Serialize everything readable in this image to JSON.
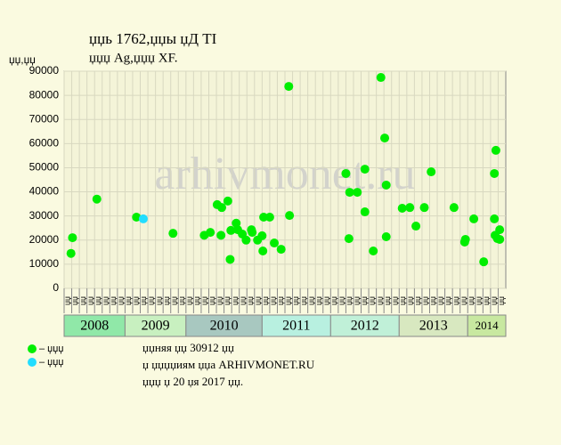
{
  "chart_data": {
    "type": "scatter",
    "title": "џџь 1762,џџы џД TI",
    "subtitle": "џџџ Ag,џџџ XF.",
    "y_label": "џџ,џџ",
    "watermark": "arhivmonet.ru",
    "xlim": [
      0,
      58
    ],
    "ylim": [
      0,
      90000
    ],
    "yticks": [
      0,
      10000,
      20000,
      30000,
      40000,
      50000,
      60000,
      70000,
      80000,
      90000
    ],
    "grid": true,
    "column_labels": [
      "џџ",
      "џџ",
      "џџ",
      "џџ",
      "џџ",
      "џџ",
      "џџ",
      "џџ",
      "џџ",
      "џџ",
      "џџ",
      "џџ",
      "џџ",
      "џџ",
      "џџ",
      "џџ",
      "џџ",
      "џџ",
      "џџ",
      "џџ",
      "џџ",
      "џџ",
      "џџ",
      "џџ",
      "џџ",
      "џџ",
      "џџ",
      "џџ",
      "џџ",
      "џџ",
      "џџ",
      "џџ",
      "џџ",
      "џџ",
      "џџ",
      "џџ",
      "џџ",
      "џџ",
      "џџ",
      "џџ",
      "џџ",
      "џџ",
      "џџ",
      "џџ",
      "џџ",
      "џџ",
      "џџ",
      "џџ",
      "џџ",
      "џџ",
      "џџ",
      "џџ",
      "џџ",
      "џџ",
      "џџ",
      "џџ",
      "џџ",
      "џџ"
    ],
    "years": [
      {
        "label": "2008",
        "start": 0,
        "end": 8,
        "color": "#90e8a8"
      },
      {
        "label": "2009",
        "start": 8,
        "end": 16,
        "color": "#c8f0c0"
      },
      {
        "label": "2010",
        "start": 16,
        "end": 26,
        "color": "#a8c8c0"
      },
      {
        "label": "2011",
        "start": 26,
        "end": 35,
        "color": "#b8f0e0"
      },
      {
        "label": "2012",
        "start": 35,
        "end": 44,
        "color": "#c0f0d8"
      },
      {
        "label": "2013",
        "start": 44,
        "end": 53,
        "color": "#d8e8c0"
      },
      {
        "label": "2014",
        "start": 53,
        "end": 58,
        "color": "#c8e8a0"
      }
    ],
    "series": [
      {
        "name": "– џџџ",
        "color": "#00ee00",
        "x": [
          0.9,
          1.1,
          4.3,
          9.5,
          14.3,
          18.4,
          19.2,
          20.1,
          20.7,
          20.6,
          21.5,
          21.8,
          21.9,
          22.6,
          22.8,
          23.4,
          23.9,
          24.6,
          24.7,
          25.4,
          26.0,
          26.1,
          26.2,
          27.0,
          27.6,
          28.5,
          29.5,
          29.6,
          37.0,
          37.4,
          37.5,
          38.5,
          39.5,
          39.5,
          40.6,
          41.6,
          42.1,
          42.3,
          42.3,
          44.4,
          45.4,
          46.2,
          47.3,
          48.2,
          51.2,
          52.6,
          52.7,
          53.8,
          55.1,
          56.5,
          56.5,
          56.7,
          56.6,
          56.9,
          57.2,
          57.2
        ],
        "values": [
          14500,
          21000,
          37000,
          29500,
          22800,
          22000,
          23200,
          34700,
          33500,
          22000,
          36200,
          12000,
          24000,
          27000,
          24300,
          22500,
          20000,
          24300,
          23200,
          20000,
          21800,
          15500,
          29500,
          29500,
          18800,
          16200,
          83700,
          30200,
          47600,
          20600,
          39800,
          39800,
          49400,
          31700,
          15500,
          87400,
          62300,
          42800,
          21400,
          33200,
          33500,
          25800,
          33500,
          48300,
          33500,
          19200,
          20300,
          28800,
          11000,
          47600,
          28800,
          57200,
          22000,
          20600,
          24300,
          20300
        ]
      },
      {
        "name": "– џџџ",
        "color": "#22ddff",
        "x": [
          10.4
        ],
        "values": [
          28800
        ]
      }
    ],
    "footer": [
      "џџняя џџ 30912 џџ",
      "џ џџџџиям џџа ARHIVMONET.RU",
      "џџџ џ 20 џя 2017 џџ."
    ]
  }
}
